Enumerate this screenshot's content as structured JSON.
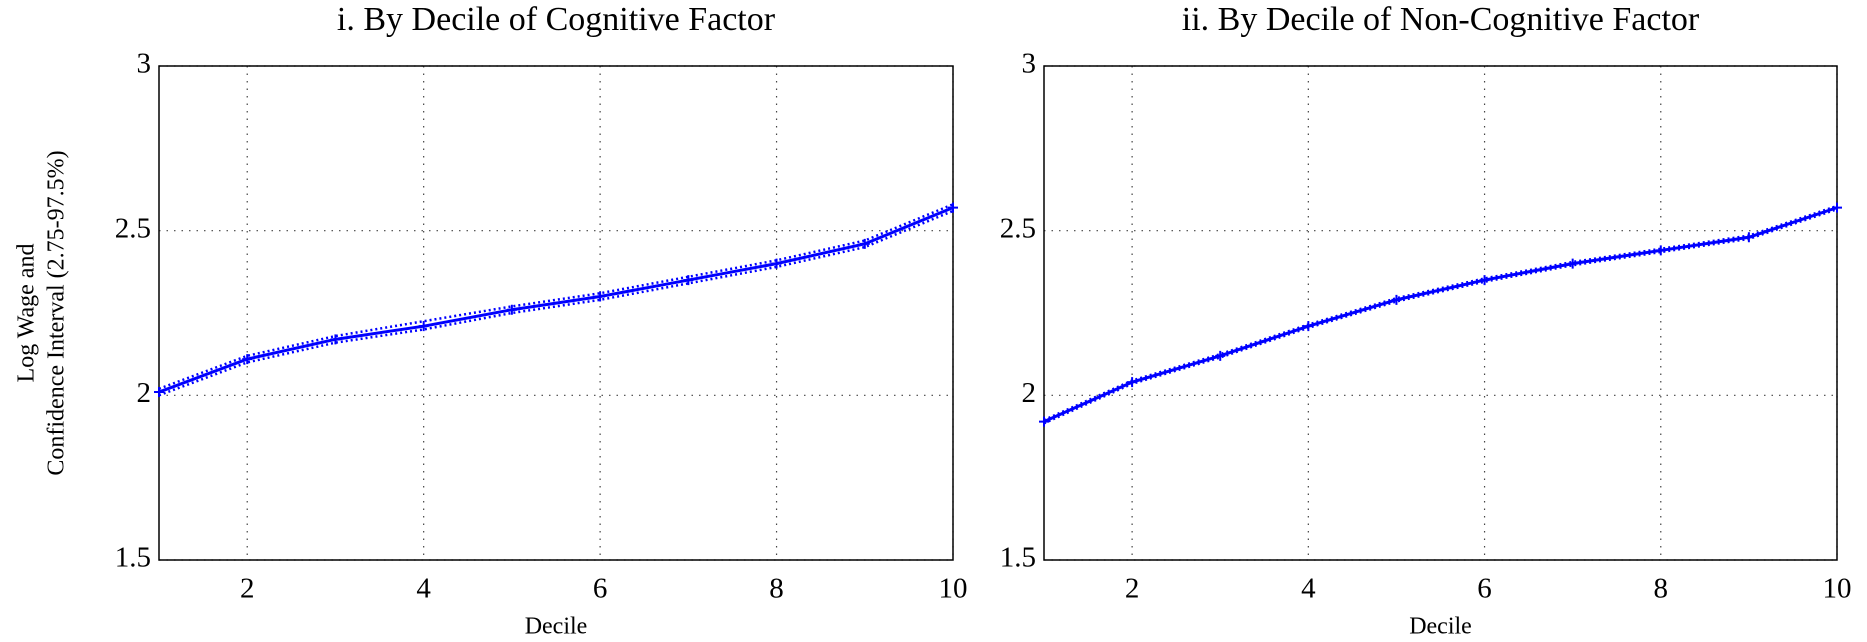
{
  "chart_data": [
    {
      "type": "line",
      "title": "i. By Decile of Cognitive Factor",
      "xlabel": "Decile",
      "ylabel": [
        "Log Wage and",
        "Confidence Interval (2.75-97.5%)"
      ],
      "x": [
        1,
        2,
        3,
        4,
        5,
        6,
        7,
        8,
        9,
        10
      ],
      "xlim": [
        1,
        10
      ],
      "xticks": [
        2,
        4,
        6,
        8,
        10
      ],
      "ylim": [
        1.5,
        3
      ],
      "yticks": [
        1.5,
        2,
        2.5,
        3
      ],
      "grid": true,
      "series": [
        {
          "color": "#0000ff",
          "line_style": "solid",
          "marker": "+",
          "values": [
            2.01,
            2.11,
            2.17,
            2.21,
            2.26,
            2.3,
            2.35,
            2.4,
            2.46,
            2.57
          ]
        },
        {
          "color": "#0000ff",
          "line_style": "dotted",
          "values": [
            2.02,
            2.12,
            2.18,
            2.225,
            2.27,
            2.31,
            2.36,
            2.41,
            2.47,
            2.58
          ]
        },
        {
          "color": "#0000ff",
          "line_style": "dotted",
          "values": [
            2.0,
            2.1,
            2.16,
            2.2,
            2.25,
            2.29,
            2.34,
            2.39,
            2.45,
            2.56
          ]
        }
      ]
    },
    {
      "type": "line",
      "title": "ii. By Decile of Non-Cognitive Factor",
      "xlabel": "Decile",
      "x": [
        1,
        2,
        3,
        4,
        5,
        6,
        7,
        8,
        9,
        10
      ],
      "xlim": [
        1,
        10
      ],
      "xticks": [
        2,
        4,
        6,
        8,
        10
      ],
      "ylim": [
        1.5,
        3
      ],
      "yticks": [
        1.5,
        2,
        2.5,
        3
      ],
      "grid": true,
      "series": [
        {
          "color": "#0000ff",
          "line_style": "solid",
          "marker": "+",
          "values": [
            1.92,
            2.04,
            2.12,
            2.21,
            2.29,
            2.35,
            2.4,
            2.44,
            2.48,
            2.57
          ]
        },
        {
          "color": "#0000ff",
          "line_style": "dotted",
          "values": [
            1.925,
            2.045,
            2.125,
            2.215,
            2.295,
            2.355,
            2.405,
            2.445,
            2.485,
            2.575
          ]
        },
        {
          "color": "#0000ff",
          "line_style": "dotted",
          "values": [
            1.915,
            2.035,
            2.115,
            2.205,
            2.285,
            2.345,
            2.395,
            2.435,
            2.475,
            2.565
          ]
        }
      ]
    }
  ]
}
